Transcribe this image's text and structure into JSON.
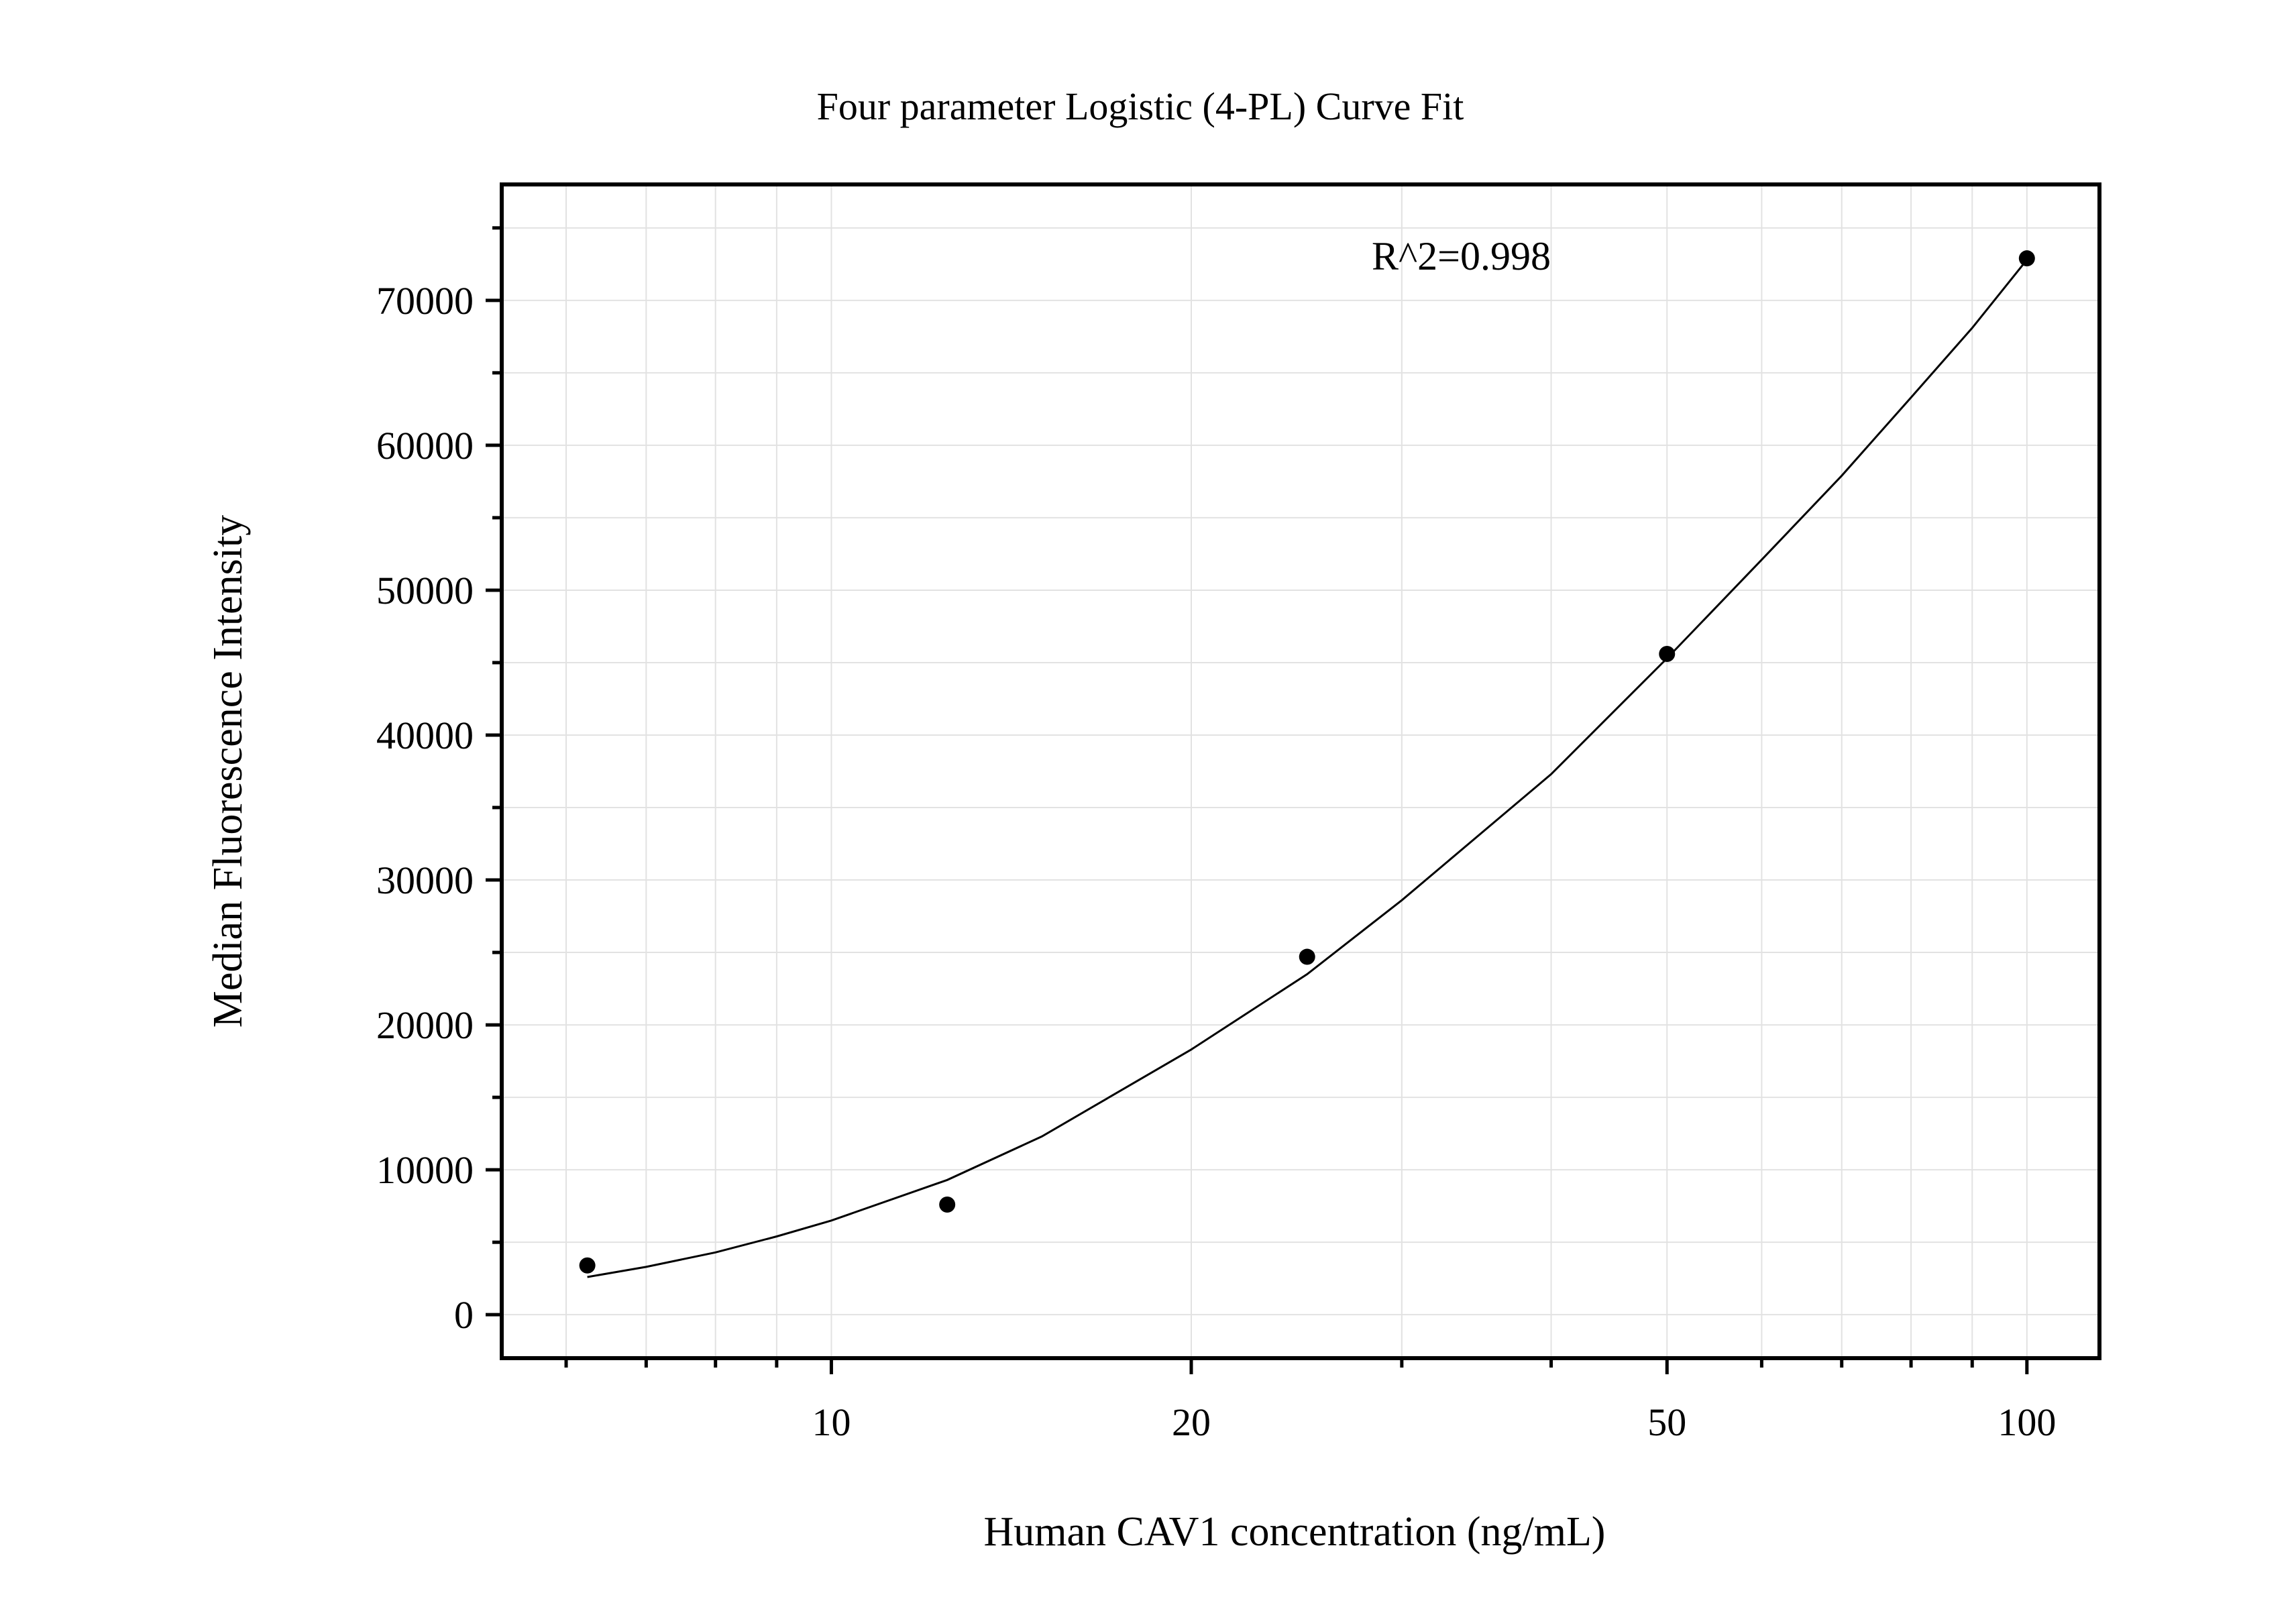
{
  "chart_data": {
    "type": "scatter",
    "title": "Four parameter Logistic (4-PL) Curve Fit",
    "xlabel": "Human CAV1 concentration (ng/mL)",
    "ylabel": "Median Fluorescence Intensity",
    "x_scale": "log",
    "xlim": [
      5.3,
      115
    ],
    "ylim": [
      -3000,
      78000
    ],
    "x_ticks": [
      10,
      20,
      50,
      100
    ],
    "x_tick_labels": [
      "10",
      "20",
      "50",
      "100"
    ],
    "y_ticks": [
      0,
      10000,
      20000,
      30000,
      40000,
      50000,
      60000,
      70000
    ],
    "y_tick_labels": [
      "0",
      "10000",
      "20000",
      "30000",
      "40000",
      "50000",
      "60000",
      "70000"
    ],
    "grid": true,
    "annotation": "R^2=0.998",
    "series": [
      {
        "kind": "points",
        "x": [
          6.25,
          12.5,
          25,
          50,
          100
        ],
        "y": [
          3400,
          7600,
          24700,
          45600,
          72900
        ]
      },
      {
        "kind": "fit-curve",
        "x": [
          6.25,
          7,
          8,
          9,
          10,
          12.5,
          15,
          20,
          25,
          30,
          40,
          50,
          60,
          70,
          80,
          90,
          100
        ],
        "y": [
          2600,
          3300,
          4300,
          5400,
          6500,
          9300,
          12300,
          18300,
          23500,
          28600,
          37300,
          45300,
          52100,
          57900,
          63300,
          68100,
          72800
        ]
      }
    ],
    "colors": {
      "marker": "#000000",
      "curve": "#000000",
      "grid": "#e2e2e2",
      "frame": "#000000"
    }
  }
}
